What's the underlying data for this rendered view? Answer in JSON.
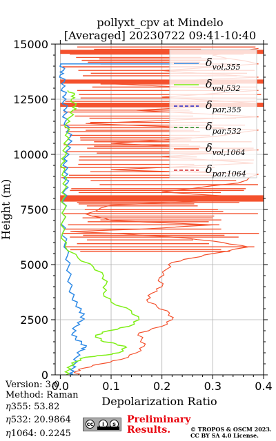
{
  "chart_data": {
    "type": "line",
    "title": [
      "pollyxt_cpv at Mindelo",
      "[Averaged] 20230722 09:41-10:40"
    ],
    "xlabel": "Depolarization Ratio",
    "ylabel": "Height (m)",
    "xlim": [
      -0.01,
      0.4
    ],
    "ylim": [
      0,
      15000
    ],
    "xticks": [
      "0.0",
      "0.1",
      "0.2",
      "0.3",
      "0.4"
    ],
    "xtick_values": [
      0,
      0.1,
      0.2,
      0.3,
      0.4
    ],
    "yticks": [
      "0",
      "2500",
      "5000",
      "7500",
      "10000",
      "12500",
      "15000"
    ],
    "ytick_values": [
      0,
      2500,
      5000,
      7500,
      10000,
      12500,
      15000
    ],
    "grid": true,
    "legend_position": "top-right",
    "series": [
      {
        "name": "δvol,355",
        "sub": "vol,355",
        "color": "#2e8ae6",
        "style": "solid",
        "points": [
          [
            0.02,
            0
          ],
          [
            0.022,
            100
          ],
          [
            0.025,
            300
          ],
          [
            0.028,
            500
          ],
          [
            0.032,
            800
          ],
          [
            0.04,
            1100
          ],
          [
            0.05,
            1250
          ],
          [
            0.042,
            1450
          ],
          [
            0.03,
            1650
          ],
          [
            0.025,
            1900
          ],
          [
            0.03,
            2200
          ],
          [
            0.042,
            2450
          ],
          [
            0.045,
            2700
          ],
          [
            0.04,
            2900
          ],
          [
            0.032,
            3200
          ],
          [
            0.025,
            3500
          ],
          [
            0.02,
            3900
          ],
          [
            0.018,
            4400
          ],
          [
            0.016,
            4900
          ],
          [
            0.014,
            5400
          ],
          [
            0.01,
            6000
          ],
          [
            0.006,
            6500
          ],
          [
            0.006,
            7000
          ],
          [
            0.008,
            7500
          ],
          [
            0.008,
            8000
          ],
          [
            0.01,
            8400
          ],
          [
            0.014,
            8700
          ],
          [
            0.01,
            9000
          ],
          [
            0.012,
            9300
          ],
          [
            0.008,
            9600
          ],
          [
            0.012,
            9900
          ],
          [
            0.015,
            10200
          ],
          [
            0.018,
            10500
          ],
          [
            0.02,
            10800
          ],
          [
            0.015,
            11100
          ],
          [
            0.01,
            11500
          ],
          [
            0.008,
            11800
          ],
          [
            0.012,
            12100
          ],
          [
            0.006,
            12400
          ],
          [
            0.01,
            12700
          ],
          [
            0.004,
            13000
          ],
          [
            0.008,
            13300
          ],
          [
            0.0,
            13600
          ],
          [
            0.006,
            13800
          ],
          [
            0.002,
            14100
          ]
        ]
      },
      {
        "name": "δvol,532",
        "sub": "vol,532",
        "color": "#7fef17",
        "style": "solid",
        "points": [
          [
            0.012,
            0
          ],
          [
            0.015,
            200
          ],
          [
            0.02,
            400
          ],
          [
            0.03,
            600
          ],
          [
            0.05,
            800
          ],
          [
            0.09,
            900
          ],
          [
            0.115,
            1000
          ],
          [
            0.13,
            1250
          ],
          [
            0.11,
            1400
          ],
          [
            0.08,
            1550
          ],
          [
            0.07,
            1800
          ],
          [
            0.095,
            2000
          ],
          [
            0.135,
            2200
          ],
          [
            0.155,
            2500
          ],
          [
            0.14,
            2900
          ],
          [
            0.1,
            3300
          ],
          [
            0.085,
            3700
          ],
          [
            0.09,
            4100
          ],
          [
            0.085,
            4500
          ],
          [
            0.065,
            4900
          ],
          [
            0.035,
            5300
          ],
          [
            0.01,
            5800
          ],
          [
            0.004,
            6400
          ],
          [
            0.006,
            7000
          ],
          [
            0.008,
            7500
          ],
          [
            0.006,
            8000
          ],
          [
            0.008,
            8400
          ],
          [
            0.01,
            8800
          ],
          [
            0.006,
            9200
          ],
          [
            0.004,
            9600
          ],
          [
            0.008,
            9900
          ],
          [
            0.01,
            10300
          ],
          [
            0.012,
            10600
          ],
          [
            0.015,
            11000
          ],
          [
            0.012,
            11400
          ],
          [
            0.02,
            11700
          ],
          [
            0.025,
            12000
          ],
          [
            0.03,
            12200
          ],
          [
            0.022,
            12500
          ],
          [
            0.028,
            12700
          ],
          [
            0.015,
            12900
          ]
        ]
      },
      {
        "name": "δpar,355",
        "sub": "par,355",
        "color": "#1f1fc4",
        "style": "dashed",
        "points": []
      },
      {
        "name": "δpar,532",
        "sub": "par,532",
        "color": "#228b22",
        "style": "dashed",
        "points": []
      },
      {
        "name": "δvol,1064",
        "sub": "vol,1064",
        "color": "#f4512d",
        "style": "solid",
        "points": [
          [
            0.035,
            0
          ],
          [
            0.03,
            150
          ],
          [
            0.045,
            300
          ],
          [
            0.08,
            500
          ],
          [
            0.12,
            700
          ],
          [
            0.15,
            1000
          ],
          [
            0.165,
            1300
          ],
          [
            0.16,
            1600
          ],
          [
            0.155,
            1900
          ],
          [
            0.2,
            2200
          ],
          [
            0.22,
            2500
          ],
          [
            0.215,
            2800
          ],
          [
            0.19,
            3100
          ],
          [
            0.17,
            3400
          ],
          [
            0.18,
            3700
          ],
          [
            0.2,
            4000
          ],
          [
            0.195,
            4400
          ],
          [
            0.21,
            4800
          ],
          [
            0.22,
            5100
          ],
          [
            0.26,
            5300
          ],
          [
            0.3,
            5500
          ],
          [
            0.37,
            5800
          ],
          [
            0.32,
            6000
          ],
          [
            0.25,
            6200
          ],
          [
            0.12,
            6400
          ],
          [
            0.02,
            6500
          ],
          [
            0.15,
            6600
          ],
          [
            0.3,
            6800
          ],
          [
            0.1,
            7000
          ],
          [
            0.05,
            7300
          ],
          [
            0.1,
            7700
          ],
          [
            0.395,
            8000
          ],
          [
            0.2,
            8300
          ],
          [
            0.35,
            8700
          ],
          [
            0.39,
            9100
          ],
          [
            0.1,
            9300
          ],
          [
            0.38,
            9600
          ],
          [
            0.2,
            9900
          ],
          [
            0.39,
            10200
          ],
          [
            0.1,
            10500
          ],
          [
            0.3,
            10800
          ],
          [
            0.39,
            11100
          ],
          [
            0.05,
            11400
          ],
          [
            0.39,
            11700
          ],
          [
            0.15,
            12000
          ],
          [
            0.39,
            12300
          ],
          [
            0.2,
            12600
          ],
          [
            0.39,
            12900
          ],
          [
            0.1,
            13200
          ],
          [
            0.39,
            13500
          ],
          [
            0.2,
            13800
          ],
          [
            0.39,
            14100
          ],
          [
            0.3,
            14500
          ],
          [
            0.39,
            14800
          ]
        ]
      },
      {
        "name": "δpar,1064",
        "sub": "par,1064",
        "color": "#d62728",
        "style": "dashed",
        "points": []
      }
    ]
  },
  "meta": {
    "version_label": "Version: 3.0",
    "method_label": "Method: Raman",
    "eta355_label": "355:  53.82",
    "eta532_label": "532: 20.9864",
    "eta1064_label": "1064: 0.2245"
  },
  "footer": {
    "preliminary": [
      "Preliminary",
      "Results."
    ],
    "copyright": [
      "© TROPOS & OSCM 2023.",
      "CC BY SA 4.0 License."
    ],
    "cc_glyphs": [
      "cc",
      "i",
      "s"
    ]
  }
}
